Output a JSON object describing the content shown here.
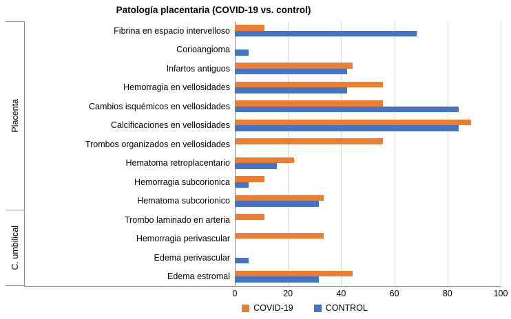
{
  "title": "Patología placentaria (COVID-19 vs. control)",
  "chart_data": {
    "type": "bar",
    "orientation": "horizontal",
    "title": "Patología placentaria (COVID-19 vs. control)",
    "groups": [
      {
        "label": "Placenta",
        "count": 10
      },
      {
        "label": "C. umbilical",
        "count": 4
      }
    ],
    "categories": [
      "Fibrina en espacio intervelloso",
      "Corioangioma",
      "Infartos antiguos",
      "Hemorragia en vellosidades",
      "Cambios isquémicos en vellosidades",
      "Calcificaciones en vellosidades",
      "Trombos organizados en vellosidades",
      "Hematoma retroplacentario",
      "Hemorragia subcorionica",
      "Hematoma subcorionico",
      "Trombo laminado en arteria",
      "Hemorragia perivascular",
      "Edema perivascular",
      "Edema estromal"
    ],
    "series": [
      {
        "name": "COVID-19",
        "color": "#ED7D31",
        "values": [
          11.1,
          0,
          44.4,
          55.6,
          55.6,
          88.9,
          55.6,
          22.2,
          11.1,
          33.3,
          11.1,
          33.3,
          0,
          44.4
        ]
      },
      {
        "name": "CONTROL",
        "color": "#4472C4",
        "values": [
          68.4,
          5.3,
          42.1,
          42.1,
          84.2,
          84.2,
          0,
          15.8,
          5.3,
          31.6,
          0,
          0,
          5.3,
          31.6
        ]
      }
    ],
    "xlabel": "",
    "ylabel": "",
    "xlim": [
      0,
      100
    ],
    "xticks": [
      0,
      20,
      40,
      60,
      80,
      100
    ],
    "grid": true,
    "legend_position": "bottom"
  }
}
